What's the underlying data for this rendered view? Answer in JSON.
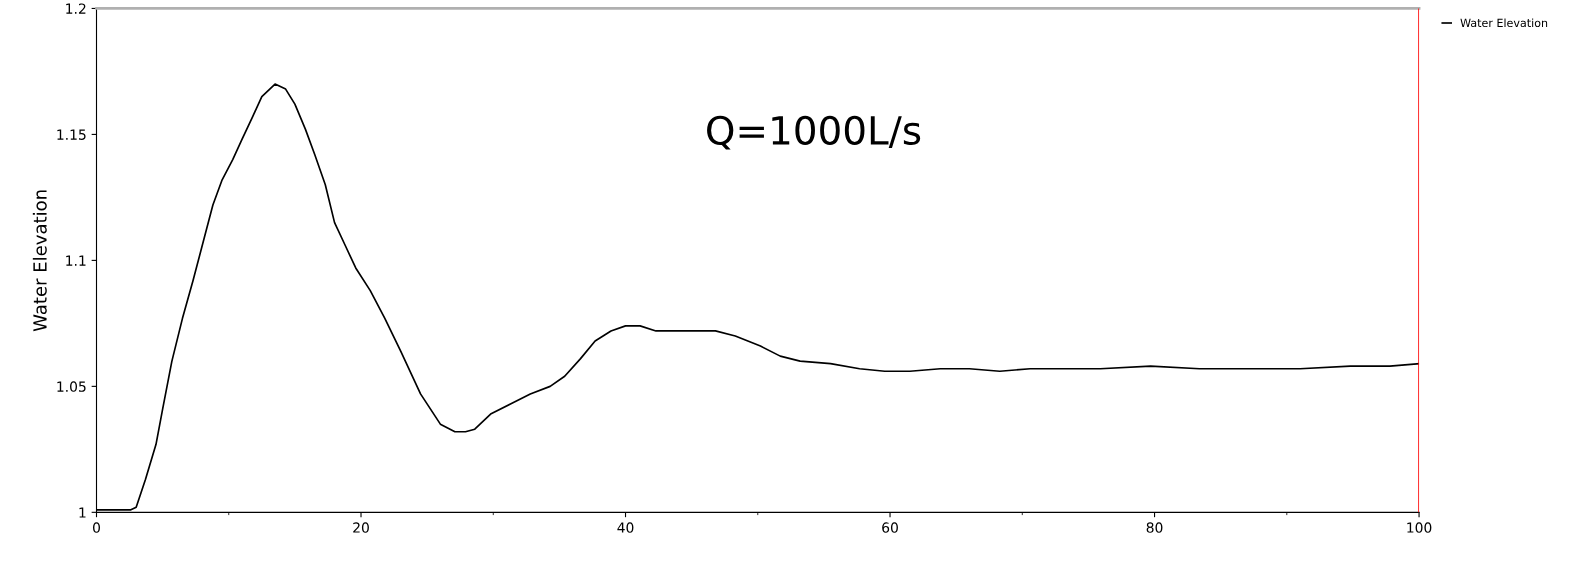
{
  "chart_data": {
    "type": "line",
    "ylabel": "Water Elevation",
    "x": [
      0,
      1.8,
      2.6,
      3,
      3.7,
      4.5,
      5,
      5.7,
      6.5,
      7.3,
      8,
      8.8,
      9.5,
      10.3,
      11,
      11.8,
      12.5,
      13.5,
      14.3,
      15,
      15.8,
      16.5,
      17.3,
      18,
      18.8,
      19.6,
      20.7,
      21.8,
      23,
      24.5,
      26,
      27.1,
      27.9,
      28.6,
      29.8,
      31.3,
      32.8,
      34.3,
      35.4,
      36.6,
      37.7,
      38.9,
      40,
      41.1,
      42.3,
      44.1,
      46.8,
      48.3,
      50.2,
      51.7,
      53.2,
      55.5,
      57.7,
      59.6,
      61.5,
      63.8,
      66,
      68.3,
      70.6,
      72.9,
      75.9,
      79.7,
      83.4,
      87.2,
      91,
      94.8,
      97.8,
      100
    ],
    "series": [
      {
        "name": "Water Elevation",
        "color": "#000000",
        "values": [
          1.001,
          1.001,
          1.001,
          1.002,
          1.013,
          1.027,
          1.041,
          1.06,
          1.077,
          1.092,
          1.106,
          1.122,
          1.132,
          1.14,
          1.148,
          1.157,
          1.165,
          1.17,
          1.168,
          1.162,
          1.152,
          1.142,
          1.13,
          1.115,
          1.106,
          1.097,
          1.088,
          1.077,
          1.064,
          1.047,
          1.035,
          1.032,
          1.032,
          1.033,
          1.039,
          1.043,
          1.047,
          1.05,
          1.054,
          1.061,
          1.068,
          1.072,
          1.074,
          1.074,
          1.072,
          1.072,
          1.072,
          1.07,
          1.066,
          1.062,
          1.06,
          1.059,
          1.057,
          1.056,
          1.056,
          1.057,
          1.057,
          1.056,
          1.057,
          1.057,
          1.057,
          1.058,
          1.057,
          1.057,
          1.057,
          1.058,
          1.058,
          1.059
        ]
      }
    ],
    "xlim": [
      0,
      100
    ],
    "xticks": [
      0,
      20,
      40,
      60,
      80,
      100
    ],
    "ylim": [
      1,
      1.2
    ],
    "yticks": [
      {
        "value": 1,
        "label": "1"
      },
      1.05,
      1.1,
      1.15,
      1.2
    ],
    "ref_lines": [
      {
        "axis": "x",
        "value": 100,
        "color": "#ff0000"
      }
    ],
    "annotations": [
      "Q=1000L/s"
    ],
    "legend": "top right",
    "grid": false,
    "marker": "none",
    "line_style": "solid"
  }
}
